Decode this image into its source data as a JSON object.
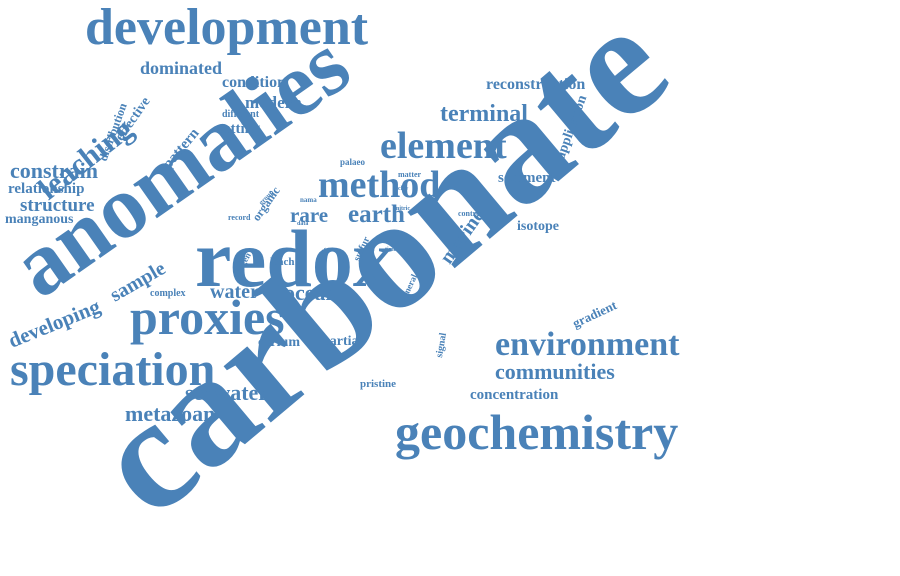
{
  "colors": {
    "word": "#4a82b8",
    "background": "#ffffff"
  },
  "words": [
    {
      "text": "carbonate",
      "rot": "diagonal-up"
    },
    {
      "text": "anomalies",
      "rot": "diagonal-up"
    },
    {
      "text": "redox",
      "rot": "horizontal"
    },
    {
      "text": "development",
      "rot": "horizontal"
    },
    {
      "text": "geochemistry",
      "rot": "horizontal"
    },
    {
      "text": "proxies",
      "rot": "horizontal"
    },
    {
      "text": "speciation",
      "rot": "horizontal"
    },
    {
      "text": "element",
      "rot": "horizontal"
    },
    {
      "text": "method",
      "rot": "horizontal"
    },
    {
      "text": "environment",
      "rot": "horizontal"
    },
    {
      "text": "leaching",
      "rot": "diagonal-up"
    },
    {
      "text": "earth",
      "rot": "horizontal"
    },
    {
      "text": "terminal",
      "rot": "horizontal"
    },
    {
      "text": "communities",
      "rot": "horizontal"
    },
    {
      "text": "seawater",
      "rot": "horizontal"
    },
    {
      "text": "metazoan",
      "rot": "horizontal"
    },
    {
      "text": "constrain",
      "rot": "horizontal"
    },
    {
      "text": "structure",
      "rot": "horizontal"
    },
    {
      "text": "developing",
      "rot": "diagonal-up"
    },
    {
      "text": "ocean",
      "rot": "horizontal"
    },
    {
      "text": "water",
      "rot": "horizontal"
    },
    {
      "text": "sample",
      "rot": "diagonal-up"
    },
    {
      "text": "marine",
      "rot": "diagonal-up"
    },
    {
      "text": "rare",
      "rot": "horizontal"
    },
    {
      "text": "reconstruction",
      "rot": "horizontal"
    },
    {
      "text": "dominated",
      "rot": "horizontal"
    },
    {
      "text": "condition",
      "rot": "horizontal"
    },
    {
      "text": "modern",
      "rot": "horizontal"
    },
    {
      "text": "setting",
      "rot": "horizontal"
    },
    {
      "text": "pattern",
      "rot": "diagonal-up"
    },
    {
      "text": "effective",
      "rot": "diagonal-up"
    },
    {
      "text": "distribution",
      "rot": "diagonal-up"
    },
    {
      "text": "relationship",
      "rot": "horizontal"
    },
    {
      "text": "manganous",
      "rot": "horizontal"
    },
    {
      "text": "sediment",
      "rot": "horizontal"
    },
    {
      "text": "application",
      "rot": "diagonal-up"
    },
    {
      "text": "isotope",
      "rot": "horizontal"
    },
    {
      "text": "concentration",
      "rot": "horizontal"
    },
    {
      "text": "cerium",
      "rot": "horizontal"
    },
    {
      "text": "partial",
      "rot": "horizontal"
    },
    {
      "text": "gradient",
      "rot": "diagonal-up"
    },
    {
      "text": "pristine",
      "rot": "horizontal"
    },
    {
      "text": "signal",
      "rot": "diagonal-up"
    },
    {
      "text": "complex",
      "rot": "horizontal"
    },
    {
      "text": "different",
      "rot": "horizontal"
    },
    {
      "text": "palaeo",
      "rot": "horizontal"
    },
    {
      "text": "organic",
      "rot": "diagonal-up"
    },
    {
      "text": "mineral",
      "rot": "diagonal-up"
    },
    {
      "text": "leach",
      "rot": "horizontal"
    },
    {
      "text": "oxygen",
      "rot": "diagonal-up"
    },
    {
      "text": "sulfur",
      "rot": "diagonal-up"
    },
    {
      "text": "control",
      "rot": "horizontal"
    },
    {
      "text": "group",
      "rot": "diagonal-up"
    },
    {
      "text": "matter",
      "rot": "horizontal"
    },
    {
      "text": "record",
      "rot": "horizontal"
    },
    {
      "text": "nama",
      "rot": "horizontal"
    },
    {
      "text": "nitric",
      "rot": "horizontal"
    },
    {
      "text": "data",
      "rot": "horizontal"
    },
    {
      "text": "result",
      "rot": "diagonal-up"
    },
    {
      "text": "time",
      "rot": "horizontal"
    },
    {
      "text": "clay",
      "rot": "horizontal"
    },
    {
      "text": "rich",
      "rot": "diagonal-up"
    }
  ]
}
